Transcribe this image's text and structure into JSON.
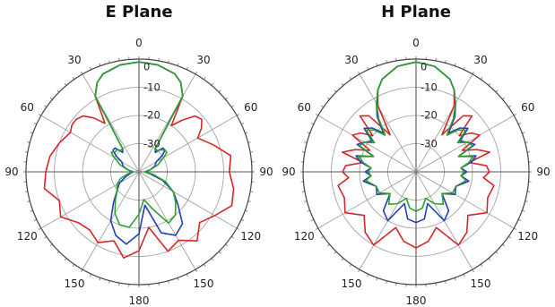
{
  "chart_data": [
    {
      "type": "polar",
      "title": "E Plane",
      "theta_labels": [
        "0",
        "30",
        "60",
        "90",
        "120",
        "150",
        "180",
        "150",
        "120",
        "90",
        "60",
        "30"
      ],
      "theta_label_angles": [
        0,
        30,
        60,
        90,
        120,
        150,
        180,
        210,
        240,
        270,
        300,
        330
      ],
      "r_labels": [
        "0",
        "-10",
        "-20",
        "-30"
      ],
      "r_values": [
        0,
        -10,
        -20,
        -30
      ],
      "rlim": [
        -40,
        0
      ],
      "grid": true,
      "series": [
        {
          "color": "#d62728",
          "angles": [
            0,
            10,
            20,
            25,
            30,
            35,
            40,
            45,
            50,
            55,
            60,
            70,
            80,
            90,
            100,
            110,
            120,
            130,
            140,
            150,
            160,
            170,
            180,
            190,
            200,
            210,
            220,
            230,
            240,
            250,
            260,
            270,
            280,
            290,
            300,
            305,
            310,
            315,
            320,
            325,
            330,
            335,
            340,
            350
          ],
          "values": [
            -1,
            -1.5,
            -3,
            -5,
            -9,
            -20,
            -16,
            -12,
            -11,
            -13,
            -16,
            -12,
            -7,
            -8,
            -6,
            -5,
            -9,
            -12,
            -8,
            -12,
            -10,
            -20,
            -12,
            -9,
            -14,
            -11,
            -13,
            -12,
            -8,
            -10,
            -6,
            -7,
            -8,
            -10,
            -12,
            -11,
            -11,
            -12,
            -15,
            -19,
            -9,
            -5,
            -3,
            -1.5
          ]
        },
        {
          "color": "#1f3fbf",
          "angles": [
            0,
            10,
            20,
            25,
            30,
            35,
            40,
            45,
            50,
            55,
            60,
            70,
            80,
            90,
            100,
            110,
            120,
            130,
            140,
            150,
            160,
            170,
            180,
            190,
            200,
            210,
            220,
            230,
            240,
            250,
            260,
            270,
            280,
            290,
            300,
            305,
            310,
            315,
            320,
            325,
            330,
            335,
            340,
            350
          ],
          "values": [
            -1,
            -1.5,
            -3,
            -5,
            -9,
            -30,
            -31,
            -28,
            -28,
            -30,
            -33,
            -34,
            -36,
            -38,
            -36,
            -31,
            -26,
            -22,
            -16,
            -14,
            -17,
            -28,
            -18,
            -14,
            -16,
            -20,
            -26,
            -30,
            -32,
            -35,
            -37,
            -38,
            -36,
            -34,
            -33,
            -30,
            -28,
            -28,
            -31,
            -30,
            -9,
            -5,
            -3,
            -1.5
          ]
        },
        {
          "color": "#2ca02c",
          "angles": [
            0,
            10,
            20,
            25,
            30,
            35,
            40,
            45,
            50,
            55,
            60,
            70,
            80,
            90,
            100,
            110,
            120,
            130,
            140,
            150,
            160,
            170,
            180,
            190,
            200,
            210,
            220,
            230,
            240,
            250,
            260,
            270,
            280,
            290,
            300,
            305,
            310,
            315,
            320,
            325,
            330,
            335,
            340,
            350
          ],
          "values": [
            -1,
            -1.5,
            -3,
            -5,
            -9,
            -30,
            -30,
            -29,
            -28,
            -28,
            -30,
            -33,
            -36,
            -38,
            -35,
            -30,
            -26,
            -23,
            -20,
            -19,
            -26,
            -30,
            -25,
            -20,
            -20,
            -23,
            -27,
            -30,
            -31,
            -33,
            -36,
            -38,
            -36,
            -33,
            -30,
            -28,
            -29,
            -29,
            -30,
            -30,
            -9,
            -5,
            -3,
            -1.5
          ]
        }
      ]
    },
    {
      "type": "polar",
      "title": "H Plane",
      "theta_labels": [
        "0",
        "30",
        "60",
        "90",
        "120",
        "150",
        "180",
        "150",
        "120",
        "90",
        "60",
        "30"
      ],
      "theta_label_angles": [
        0,
        30,
        60,
        90,
        120,
        150,
        180,
        210,
        240,
        270,
        300,
        330
      ],
      "r_labels": [
        "0",
        "-10",
        "-20",
        "-30"
      ],
      "r_values": [
        0,
        -10,
        -20,
        -30
      ],
      "rlim": [
        -40,
        0
      ],
      "grid": true,
      "series": [
        {
          "color": "#d62728",
          "angles": [
            0,
            10,
            20,
            25,
            30,
            35,
            40,
            45,
            50,
            55,
            60,
            65,
            70,
            75,
            80,
            85,
            90,
            95,
            100,
            110,
            120,
            130,
            140,
            150,
            160,
            170,
            180,
            190,
            200,
            210,
            220,
            230,
            240,
            250,
            260,
            265,
            270,
            275,
            280,
            285,
            290,
            295,
            300,
            305,
            310,
            315,
            320,
            325,
            330,
            335,
            340,
            350
          ],
          "values": [
            -1,
            -2,
            -5,
            -8,
            -13,
            -24,
            -14,
            -12,
            -20,
            -16,
            -14,
            -22,
            -17,
            -13,
            -21,
            -15,
            -14,
            -16,
            -12,
            -13,
            -11,
            -16,
            -12,
            -10,
            -19,
            -15,
            -13,
            -15,
            -19,
            -10,
            -12,
            -16,
            -11,
            -13,
            -12,
            -16,
            -14,
            -15,
            -21,
            -13,
            -17,
            -22,
            -14,
            -16,
            -20,
            -12,
            -14,
            -24,
            -13,
            -8,
            -5,
            -2
          ]
        },
        {
          "color": "#1f3fbf",
          "angles": [
            0,
            10,
            20,
            25,
            30,
            35,
            40,
            45,
            50,
            55,
            60,
            65,
            70,
            75,
            80,
            85,
            90,
            95,
            100,
            110,
            120,
            130,
            140,
            150,
            160,
            170,
            180,
            190,
            200,
            210,
            220,
            230,
            240,
            250,
            260,
            265,
            270,
            275,
            280,
            285,
            290,
            295,
            300,
            305,
            310,
            315,
            320,
            325,
            330,
            335,
            340,
            350
          ],
          "values": [
            -1,
            -2,
            -5,
            -8,
            -12,
            -16,
            -22,
            -18,
            -16,
            -21,
            -19,
            -17,
            -24,
            -18,
            -20,
            -24,
            -22,
            -24,
            -21,
            -25,
            -24,
            -28,
            -22,
            -20,
            -28,
            -23,
            -22,
            -23,
            -28,
            -20,
            -22,
            -28,
            -24,
            -25,
            -21,
            -24,
            -22,
            -24,
            -20,
            -18,
            -24,
            -17,
            -19,
            -21,
            -16,
            -18,
            -22,
            -16,
            -12,
            -8,
            -5,
            -2
          ]
        },
        {
          "color": "#2ca02c",
          "angles": [
            0,
            10,
            20,
            25,
            30,
            35,
            40,
            45,
            50,
            55,
            60,
            65,
            70,
            75,
            80,
            85,
            90,
            95,
            100,
            110,
            120,
            130,
            140,
            150,
            160,
            170,
            180,
            190,
            200,
            210,
            220,
            230,
            240,
            250,
            260,
            265,
            270,
            275,
            280,
            285,
            290,
            295,
            300,
            305,
            310,
            315,
            320,
            325,
            330,
            335,
            340,
            350
          ],
          "values": [
            -1,
            -2,
            -5,
            -8,
            -12,
            -17,
            -23,
            -19,
            -17,
            -22,
            -19,
            -18,
            -24,
            -19,
            -21,
            -24,
            -23,
            -24,
            -22,
            -25,
            -25,
            -28,
            -25,
            -27,
            -30,
            -27,
            -26,
            -27,
            -30,
            -27,
            -25,
            -28,
            -25,
            -25,
            -22,
            -24,
            -23,
            -24,
            -21,
            -19,
            -24,
            -18,
            -19,
            -22,
            -17,
            -19,
            -23,
            -17,
            -12,
            -8,
            -5,
            -2
          ]
        }
      ]
    }
  ]
}
